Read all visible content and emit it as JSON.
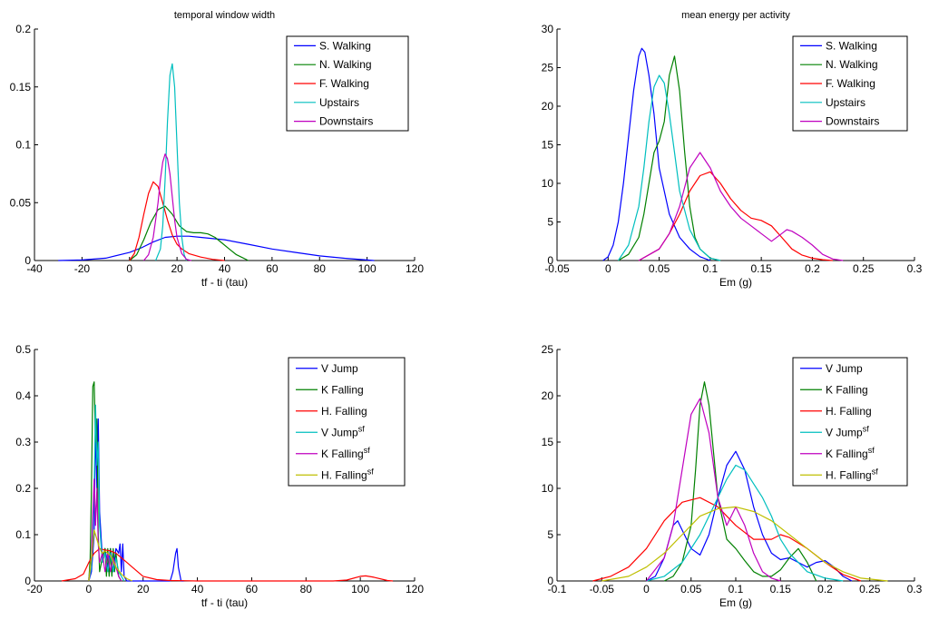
{
  "chart_data": [
    {
      "type": "line",
      "title": "temporal window width",
      "xlabel": "tf - ti (tau)",
      "ylabel": "",
      "xlim": [
        -40,
        120
      ],
      "ylim": [
        0,
        0.2
      ],
      "xticks": [
        -40,
        -20,
        0,
        20,
        40,
        60,
        80,
        100,
        120
      ],
      "yticks": [
        0,
        0.05,
        0.1,
        0.15,
        0.2
      ],
      "xtick_labels": [
        "-40",
        "-20",
        "0",
        "20",
        "40",
        "60",
        "80",
        "100",
        "120"
      ],
      "ytick_labels": [
        "0",
        "0.05",
        "0.1",
        "0.15",
        "0.2"
      ],
      "legend_position": "top-right",
      "series": [
        {
          "name": "S. Walking",
          "color": "#0000ff",
          "x": [
            -30,
            -20,
            -10,
            0,
            5,
            10,
            15,
            20,
            25,
            30,
            40,
            50,
            60,
            70,
            80,
            90,
            100,
            103
          ],
          "y": [
            0,
            0.0005,
            0.002,
            0.007,
            0.011,
            0.016,
            0.02,
            0.021,
            0.021,
            0.02,
            0.018,
            0.014,
            0.01,
            0.007,
            0.004,
            0.002,
            0.0005,
            0
          ]
        },
        {
          "name": "N. Walking",
          "color": "#008000",
          "x": [
            0,
            3,
            6,
            9,
            12,
            15,
            18,
            21,
            24,
            27,
            30,
            33,
            36,
            39,
            42,
            45,
            48,
            50
          ],
          "y": [
            0,
            0.005,
            0.018,
            0.033,
            0.044,
            0.047,
            0.04,
            0.03,
            0.025,
            0.024,
            0.024,
            0.023,
            0.02,
            0.015,
            0.01,
            0.005,
            0.002,
            0
          ]
        },
        {
          "name": "F. Walking",
          "color": "#ff0000",
          "x": [
            0,
            2,
            4,
            6,
            8,
            10,
            12,
            14,
            16,
            18,
            20,
            22,
            25,
            30,
            35,
            40
          ],
          "y": [
            0,
            0.006,
            0.02,
            0.04,
            0.058,
            0.068,
            0.064,
            0.05,
            0.035,
            0.022,
            0.014,
            0.01,
            0.006,
            0.003,
            0.001,
            0
          ]
        },
        {
          "name": "Upstairs",
          "color": "#00bfbf",
          "x": [
            11,
            13,
            14,
            15,
            16,
            17,
            18,
            19,
            20,
            21,
            22,
            23,
            24
          ],
          "y": [
            0,
            0.01,
            0.03,
            0.07,
            0.12,
            0.16,
            0.17,
            0.15,
            0.1,
            0.05,
            0.02,
            0.005,
            0
          ]
        },
        {
          "name": "Downstairs",
          "color": "#bf00bf",
          "x": [
            6,
            8,
            10,
            12,
            13,
            14,
            15,
            16,
            17,
            18,
            19,
            20,
            22,
            24,
            26
          ],
          "y": [
            0,
            0.005,
            0.02,
            0.05,
            0.07,
            0.085,
            0.092,
            0.088,
            0.075,
            0.055,
            0.035,
            0.02,
            0.006,
            0.001,
            0
          ]
        }
      ]
    },
    {
      "type": "line",
      "title": "mean energy per activity",
      "xlabel": "Em (g)",
      "ylabel": "",
      "xlim": [
        -0.05,
        0.3
      ],
      "ylim": [
        0,
        30
      ],
      "xticks": [
        -0.05,
        0,
        0.05,
        0.1,
        0.15,
        0.2,
        0.25,
        0.3
      ],
      "yticks": [
        0,
        5,
        10,
        15,
        20,
        25,
        30
      ],
      "xtick_labels": [
        "-0.05",
        "0",
        "0.05",
        "0.1",
        "0.15",
        "0.2",
        "0.25",
        "0.3"
      ],
      "ytick_labels": [
        "0",
        "5",
        "10",
        "15",
        "20",
        "25",
        "30"
      ],
      "legend_position": "top-right",
      "series": [
        {
          "name": "S. Walking",
          "color": "#0000ff",
          "x": [
            -0.005,
            0,
            0.005,
            0.01,
            0.015,
            0.02,
            0.025,
            0.03,
            0.033,
            0.036,
            0.04,
            0.045,
            0.05,
            0.06,
            0.07,
            0.08,
            0.09,
            0.1
          ],
          "y": [
            0,
            0.5,
            2,
            5,
            10,
            16,
            22,
            26.5,
            27.5,
            27,
            24,
            19,
            12,
            6,
            3,
            1.5,
            0.5,
            0
          ]
        },
        {
          "name": "N. Walking",
          "color": "#008000",
          "x": [
            0.01,
            0.02,
            0.03,
            0.035,
            0.04,
            0.045,
            0.05,
            0.055,
            0.06,
            0.065,
            0.07,
            0.075,
            0.08,
            0.085,
            0.09,
            0.1,
            0.11
          ],
          "y": [
            0,
            0.8,
            3,
            6,
            10,
            14,
            15.5,
            18,
            24,
            26.5,
            22,
            14,
            7,
            3,
            1.5,
            0.3,
            0
          ]
        },
        {
          "name": "F. Walking",
          "color": "#ff0000",
          "x": [
            0.03,
            0.05,
            0.06,
            0.07,
            0.08,
            0.09,
            0.1,
            0.11,
            0.12,
            0.13,
            0.14,
            0.15,
            0.16,
            0.17,
            0.18,
            0.19,
            0.2,
            0.21,
            0.22
          ],
          "y": [
            0,
            1.5,
            3.5,
            6,
            9,
            11,
            11.5,
            10,
            8,
            6.5,
            5.5,
            5.2,
            4.5,
            3,
            1.5,
            0.7,
            0.3,
            0.1,
            0
          ]
        },
        {
          "name": "Upstairs",
          "color": "#00bfbf",
          "x": [
            0.01,
            0.02,
            0.03,
            0.035,
            0.04,
            0.045,
            0.05,
            0.055,
            0.06,
            0.065,
            0.07,
            0.08,
            0.09,
            0.1,
            0.11
          ],
          "y": [
            0,
            2,
            7,
            12,
            18,
            22.5,
            24,
            23,
            19,
            14,
            9,
            4,
            1.5,
            0.3,
            0
          ]
        },
        {
          "name": "Downstairs",
          "color": "#bf00bf",
          "x": [
            0.03,
            0.05,
            0.06,
            0.07,
            0.08,
            0.09,
            0.1,
            0.11,
            0.12,
            0.13,
            0.14,
            0.15,
            0.16,
            0.17,
            0.175,
            0.18,
            0.19,
            0.2,
            0.21,
            0.22,
            0.23
          ],
          "y": [
            0,
            1.5,
            3.5,
            7,
            12,
            14,
            12,
            9,
            7,
            5.5,
            4.5,
            3.5,
            2.5,
            3.5,
            4,
            3.8,
            3,
            2,
            0.8,
            0.2,
            0
          ]
        }
      ]
    },
    {
      "type": "line",
      "title": "",
      "xlabel": "tf - ti (tau)",
      "ylabel": "",
      "xlim": [
        -20,
        120
      ],
      "ylim": [
        0,
        0.5
      ],
      "xticks": [
        -20,
        0,
        20,
        40,
        60,
        80,
        100,
        120
      ],
      "yticks": [
        0,
        0.1,
        0.2,
        0.3,
        0.4,
        0.5
      ],
      "xtick_labels": [
        "-20",
        "0",
        "20",
        "40",
        "60",
        "80",
        "100",
        "120"
      ],
      "ytick_labels": [
        "0",
        "0.1",
        "0.2",
        "0.3",
        "0.4",
        "0.5"
      ],
      "legend_position": "top-right",
      "series": [
        {
          "name": "V Jump",
          "color": "#0000ff",
          "x": [
            0,
            1,
            2,
            2.5,
            3,
            3.5,
            4,
            5,
            6,
            7,
            8,
            9,
            10,
            11,
            11.5,
            12,
            12.5,
            13,
            14,
            30,
            31,
            32,
            32.5,
            33,
            34,
            35
          ],
          "y": [
            0,
            0.02,
            0.1,
            0.34,
            0.2,
            0.35,
            0.15,
            0.05,
            0.07,
            0.03,
            0.07,
            0.02,
            0.07,
            0.06,
            0.08,
            0.02,
            0.08,
            0.01,
            0,
            0,
            0.02,
            0.06,
            0.07,
            0.03,
            0,
            0
          ]
        },
        {
          "name": "K Falling",
          "color": "#008000",
          "x": [
            0,
            0.5,
            1,
            1.5,
            2,
            2.5,
            3,
            3.5,
            4,
            5,
            6,
            6.5,
            7,
            7.5,
            8,
            8.5,
            9,
            9.5,
            10,
            11,
            12
          ],
          "y": [
            0,
            0.05,
            0.2,
            0.42,
            0.43,
            0.3,
            0.35,
            0.1,
            0.02,
            0.05,
            0.07,
            0.01,
            0.07,
            0.01,
            0.07,
            0.01,
            0.07,
            0.02,
            0.06,
            0.01,
            0
          ]
        },
        {
          "name": "H. Falling",
          "color": "#ff0000",
          "x": [
            -10,
            -5,
            -2,
            0,
            2,
            4,
            6,
            8,
            10,
            12,
            14,
            16,
            18,
            20,
            25,
            30,
            35,
            40,
            60,
            80,
            90,
            95,
            100,
            102,
            105,
            110,
            112
          ],
          "y": [
            0,
            0.005,
            0.015,
            0.04,
            0.06,
            0.07,
            0.067,
            0.065,
            0.06,
            0.05,
            0.04,
            0.03,
            0.02,
            0.01,
            0.003,
            0.001,
            0.0005,
            0,
            0,
            0,
            0,
            0.002,
            0.01,
            0.011,
            0.008,
            0.001,
            0
          ]
        },
        {
          "name": "V Jump^sf",
          "color": "#00bfbf",
          "x": [
            0,
            1,
            2,
            2.5,
            3,
            3.5,
            4,
            5,
            6,
            7,
            8,
            9,
            10,
            11,
            12,
            13
          ],
          "y": [
            0,
            0.03,
            0.2,
            0.38,
            0.25,
            0.3,
            0.12,
            0.04,
            0.06,
            0.02,
            0.06,
            0.02,
            0.05,
            0.02,
            0.01,
            0
          ]
        },
        {
          "name": "K Falling^sf",
          "color": "#bf00bf",
          "x": [
            0,
            1,
            1.5,
            2,
            2.5,
            3,
            3.5,
            4,
            5,
            6,
            7,
            8,
            9,
            10,
            11,
            12
          ],
          "y": [
            0,
            0.05,
            0.15,
            0.22,
            0.12,
            0.2,
            0.08,
            0.04,
            0.06,
            0.02,
            0.06,
            0.02,
            0.05,
            0.03,
            0.01,
            0
          ]
        },
        {
          "name": "H. Falling^sf",
          "color": "#bfbf00",
          "x": [
            0,
            1,
            2,
            3,
            4,
            5,
            6,
            7,
            8,
            10,
            12,
            14,
            16
          ],
          "y": [
            0,
            0.05,
            0.11,
            0.09,
            0.07,
            0.06,
            0.065,
            0.06,
            0.055,
            0.03,
            0.015,
            0.005,
            0
          ]
        }
      ]
    },
    {
      "type": "line",
      "title": "",
      "xlabel": "Em (g)",
      "ylabel": "",
      "xlim": [
        -0.1,
        0.3
      ],
      "ylim": [
        0,
        25
      ],
      "xticks": [
        -0.1,
        -0.05,
        0,
        0.05,
        0.1,
        0.15,
        0.2,
        0.25,
        0.3
      ],
      "yticks": [
        0,
        5,
        10,
        15,
        20,
        25
      ],
      "xtick_labels": [
        "-0.1",
        "-0.05",
        "0",
        "0.05",
        "0.1",
        "0.15",
        "0.2",
        "0.25",
        "0.3"
      ],
      "ytick_labels": [
        "0",
        "5",
        "10",
        "15",
        "20",
        "25"
      ],
      "legend_position": "top-right",
      "series": [
        {
          "name": "V Jump",
          "color": "#0000ff",
          "x": [
            0,
            0.01,
            0.02,
            0.03,
            0.035,
            0.04,
            0.05,
            0.06,
            0.07,
            0.08,
            0.09,
            0.1,
            0.11,
            0.12,
            0.13,
            0.14,
            0.15,
            0.16,
            0.17,
            0.18,
            0.19,
            0.2,
            0.21,
            0.22,
            0.23
          ],
          "y": [
            0,
            0.5,
            2.5,
            6,
            6.5,
            5.5,
            3.5,
            2.8,
            5,
            9,
            12.5,
            14,
            12,
            8,
            5,
            3,
            2.3,
            2.5,
            2,
            1.5,
            2,
            2.2,
            1.5,
            0.5,
            0
          ]
        },
        {
          "name": "K Falling",
          "color": "#008000",
          "x": [
            0.02,
            0.03,
            0.04,
            0.05,
            0.055,
            0.06,
            0.065,
            0.07,
            0.075,
            0.08,
            0.09,
            0.1,
            0.11,
            0.12,
            0.13,
            0.14,
            0.15,
            0.16,
            0.17,
            0.18,
            0.19
          ],
          "y": [
            0,
            0.5,
            2,
            6,
            12,
            19,
            21.5,
            19,
            14,
            9,
            4.5,
            3.5,
            2.2,
            1,
            0.5,
            0.5,
            1.2,
            2.5,
            3.5,
            2,
            0
          ]
        },
        {
          "name": "H. Falling",
          "color": "#ff0000",
          "x": [
            -0.06,
            -0.04,
            -0.02,
            0,
            0.02,
            0.04,
            0.06,
            0.08,
            0.1,
            0.12,
            0.14,
            0.15,
            0.16,
            0.18,
            0.2,
            0.22,
            0.24
          ],
          "y": [
            0,
            0.5,
            1.5,
            3.5,
            6.5,
            8.5,
            9,
            8,
            6,
            4.5,
            4.5,
            5,
            4.7,
            3.5,
            2,
            0.7,
            0
          ]
        },
        {
          "name": "V Jump^sf",
          "color": "#00bfbf",
          "x": [
            0,
            0.02,
            0.04,
            0.06,
            0.08,
            0.09,
            0.1,
            0.11,
            0.12,
            0.13,
            0.14,
            0.15,
            0.16,
            0.18,
            0.2,
            0.22
          ],
          "y": [
            0,
            0.5,
            2,
            5,
            9,
            11,
            12.5,
            12,
            10.5,
            9,
            7,
            4.5,
            3,
            1,
            0.3,
            0
          ]
        },
        {
          "name": "K Falling^sf",
          "color": "#bf00bf",
          "x": [
            0,
            0.02,
            0.03,
            0.04,
            0.05,
            0.06,
            0.07,
            0.08,
            0.09,
            0.1,
            0.11,
            0.12,
            0.13,
            0.14,
            0.15
          ],
          "y": [
            0,
            2.5,
            6,
            12,
            18,
            19.7,
            16,
            9,
            6,
            8,
            6,
            3,
            1,
            0.3,
            0
          ]
        },
        {
          "name": "H. Falling^sf",
          "color": "#bfbf00",
          "x": [
            -0.05,
            -0.02,
            0,
            0.02,
            0.04,
            0.06,
            0.08,
            0.1,
            0.12,
            0.14,
            0.16,
            0.18,
            0.2,
            0.22,
            0.24,
            0.27
          ],
          "y": [
            0,
            0.5,
            1.5,
            3,
            5,
            7,
            7.8,
            8,
            7.5,
            6.5,
            5,
            3.5,
            2,
            1,
            0.3,
            0
          ]
        }
      ]
    }
  ]
}
